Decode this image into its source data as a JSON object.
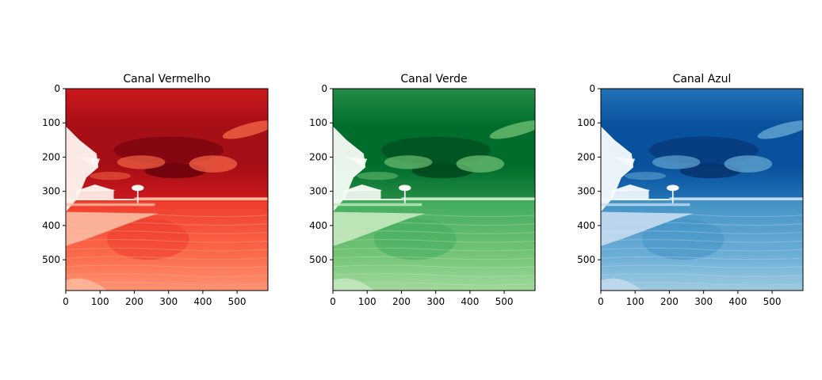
{
  "chart_data": [
    {
      "type": "heatmap",
      "title": "Canal Vermelho",
      "colormap": "Reds_r",
      "colors": [
        "#67000d",
        "#a50f15",
        "#cb181d",
        "#ef3b2c",
        "#fb6a4a",
        "#fc9272",
        "#fcbba1",
        "#fff5f0"
      ],
      "xticks": [
        0,
        100,
        200,
        300,
        400,
        500
      ],
      "yticks": [
        0,
        100,
        200,
        300,
        400,
        500
      ],
      "xlim": [
        0,
        590
      ],
      "ylim": [
        590,
        0
      ],
      "grid": false
    },
    {
      "type": "heatmap",
      "title": "Canal Verde",
      "colormap": "Greens_r",
      "colors": [
        "#00441b",
        "#006d2c",
        "#238b45",
        "#41ab5d",
        "#74c476",
        "#a1d99b",
        "#c7e9c0",
        "#f7fcf5"
      ],
      "xticks": [
        0,
        100,
        200,
        300,
        400,
        500
      ],
      "yticks": [
        0,
        100,
        200,
        300,
        400,
        500
      ],
      "xlim": [
        0,
        590
      ],
      "ylim": [
        590,
        0
      ],
      "grid": false
    },
    {
      "type": "heatmap",
      "title": "Canal Azul",
      "colormap": "Blues_r",
      "colors": [
        "#08306b",
        "#08519c",
        "#2171b5",
        "#4292c6",
        "#6baed6",
        "#9ecae1",
        "#c6dbef",
        "#f7fbff"
      ],
      "xticks": [
        0,
        100,
        200,
        300,
        400,
        500
      ],
      "yticks": [
        0,
        100,
        200,
        300,
        400,
        500
      ],
      "xlim": [
        0,
        590
      ],
      "ylim": [
        590,
        0
      ],
      "grid": false
    }
  ]
}
